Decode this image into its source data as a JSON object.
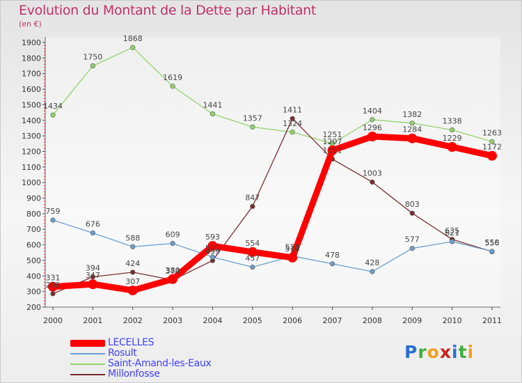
{
  "title": "Evolution du Montant de la Dette par Habitant",
  "subtitle": "(en €)",
  "logo": {
    "text": "Proxiti",
    "letters": [
      {
        "ch": "P",
        "color": "#2a6fd3"
      },
      {
        "ch": "r",
        "color": "#3fae3f"
      },
      {
        "ch": "o",
        "color": "#f2a01c"
      },
      {
        "ch": "x",
        "color": "#cc2222"
      },
      {
        "ch": "i",
        "color": "#2a6fd3"
      },
      {
        "ch": "t",
        "color": "#3fae3f"
      },
      {
        "ch": "i",
        "color": "#f2a01c"
      }
    ]
  },
  "chart_data": {
    "type": "line",
    "title": "Evolution du Montant de la Dette par Habitant",
    "subtitle": "(en €)",
    "x": [
      "2000",
      "2001",
      "2002",
      "2003",
      "2004",
      "2005",
      "2006",
      "2007",
      "2008",
      "2009",
      "2010",
      "2011"
    ],
    "yticks": [
      200,
      300,
      400,
      500,
      600,
      700,
      800,
      900,
      1000,
      1100,
      1200,
      1300,
      1400,
      1500,
      1600,
      1700,
      1800,
      1900
    ],
    "ylim": [
      200,
      1900
    ],
    "grid": false,
    "legend_position": "bottom-left",
    "series": [
      {
        "name": "LECELLES",
        "color": "#ff0000",
        "values": [
          331,
          347,
          307,
          380,
          593,
          554,
          518,
          1207,
          1296,
          1284,
          1229,
          1172
        ]
      },
      {
        "name": "Rosult",
        "color": "#6a9fd0",
        "values": [
          759,
          676,
          588,
          609,
          521,
          457,
          528,
          478,
          428,
          577,
          621,
          558
        ]
      },
      {
        "name": "Saint-Amand-les-Eaux",
        "color": "#91d36a",
        "values": [
          1434,
          1750,
          1868,
          1619,
          1441,
          1357,
          1324,
          1251,
          1404,
          1382,
          1338,
          1263
        ]
      },
      {
        "name": "Millonfosse",
        "color": "#7a2d2d",
        "values": [
          286,
          394,
          424,
          374,
          499,
          847,
          1411,
          1151,
          1003,
          803,
          635,
          556
        ]
      }
    ]
  }
}
